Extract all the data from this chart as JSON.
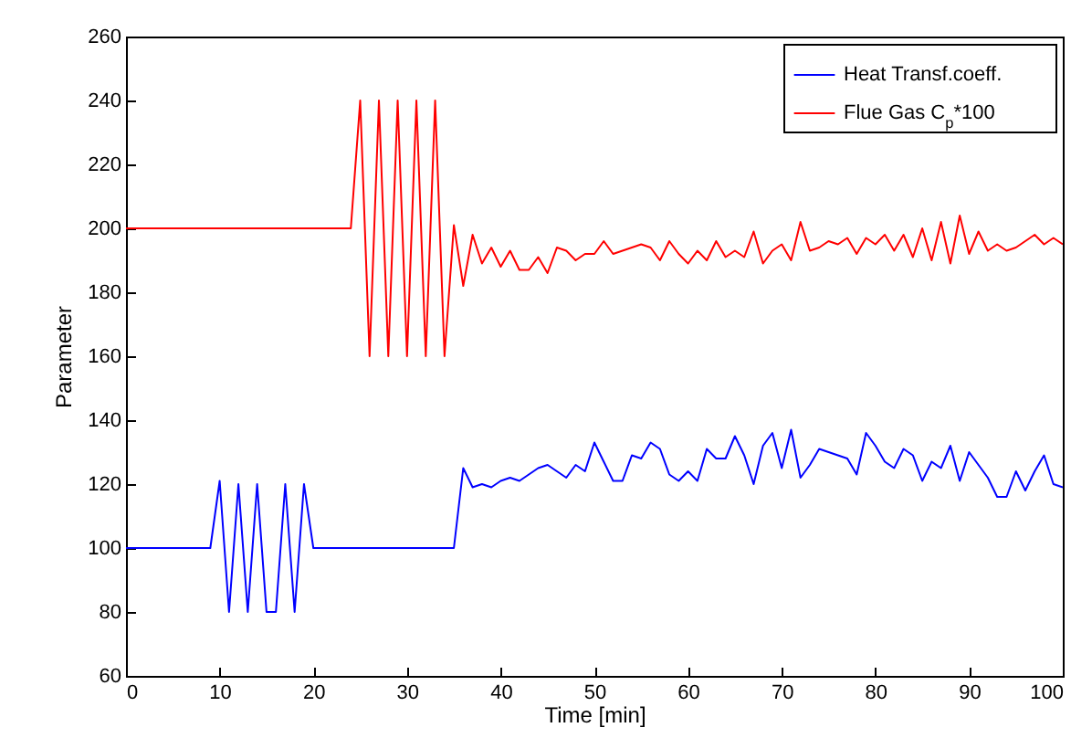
{
  "chart_data": {
    "type": "line",
    "xlabel": "Time [min]",
    "ylabel": "Parameter",
    "x": [
      0,
      1,
      2,
      3,
      4,
      5,
      6,
      7,
      8,
      9,
      10,
      11,
      12,
      13,
      14,
      15,
      16,
      17,
      18,
      19,
      20,
      21,
      22,
      23,
      24,
      25,
      26,
      27,
      28,
      29,
      30,
      31,
      32,
      33,
      34,
      35,
      36,
      37,
      38,
      39,
      40,
      41,
      42,
      43,
      44,
      45,
      46,
      47,
      48,
      49,
      50,
      51,
      52,
      53,
      54,
      55,
      56,
      57,
      58,
      59,
      60,
      61,
      62,
      63,
      64,
      65,
      66,
      67,
      68,
      69,
      70,
      71,
      72,
      73,
      74,
      75,
      76,
      77,
      78,
      79,
      80,
      81,
      82,
      83,
      84,
      85,
      86,
      87,
      88,
      89,
      90,
      91,
      92,
      93,
      94,
      95,
      96,
      97,
      98,
      99,
      100
    ],
    "series": [
      {
        "name": "Heat Transf.coeff.",
        "color": "#0000ff",
        "values": [
          100,
          100,
          100,
          100,
          100,
          100,
          100,
          100,
          100,
          100,
          121,
          80,
          120,
          80,
          120,
          80,
          80,
          120,
          80,
          120,
          100,
          100,
          100,
          100,
          100,
          100,
          100,
          100,
          100,
          100,
          100,
          100,
          100,
          100,
          100,
          100,
          125,
          119,
          120,
          119,
          121,
          122,
          121,
          123,
          125,
          126,
          124,
          122,
          126,
          124,
          133,
          127,
          121,
          121,
          129,
          128,
          133,
          131,
          123,
          121,
          124,
          121,
          131,
          128,
          128,
          135,
          129,
          120,
          132,
          136,
          125,
          137,
          122,
          126,
          131,
          130,
          129,
          128,
          123,
          136,
          132,
          127,
          125,
          131,
          129,
          121,
          127,
          125,
          132,
          121,
          130,
          126,
          122,
          116,
          116,
          124,
          118,
          124,
          129,
          120,
          119
        ]
      },
      {
        "name": "Flue Gas C$_{p}$*100",
        "color": "#ff0000",
        "values": [
          200,
          200,
          200,
          200,
          200,
          200,
          200,
          200,
          200,
          200,
          200,
          200,
          200,
          200,
          200,
          200,
          200,
          200,
          200,
          200,
          200,
          200,
          200,
          200,
          200,
          240,
          160,
          240,
          160,
          240,
          160,
          240,
          160,
          240,
          160,
          201,
          182,
          198,
          189,
          194,
          188,
          193,
          187,
          187,
          191,
          186,
          194,
          193,
          190,
          192,
          192,
          196,
          192,
          193,
          194,
          195,
          194,
          190,
          196,
          192,
          189,
          193,
          190,
          196,
          191,
          193,
          191,
          199,
          189,
          193,
          195,
          190,
          202,
          193,
          194,
          196,
          195,
          197,
          192,
          197,
          195,
          198,
          193,
          198,
          191,
          200,
          190,
          202,
          189,
          204,
          192,
          199,
          193,
          195,
          193,
          194,
          196,
          198,
          195,
          197,
          195
        ]
      }
    ],
    "xlim": [
      0,
      100
    ],
    "ylim": [
      60,
      260
    ],
    "xticks": [
      0,
      10,
      20,
      30,
      40,
      50,
      60,
      70,
      80,
      90,
      100
    ],
    "yticks": [
      60,
      80,
      100,
      120,
      140,
      160,
      180,
      200,
      220,
      240,
      260
    ],
    "legend": "top right"
  }
}
